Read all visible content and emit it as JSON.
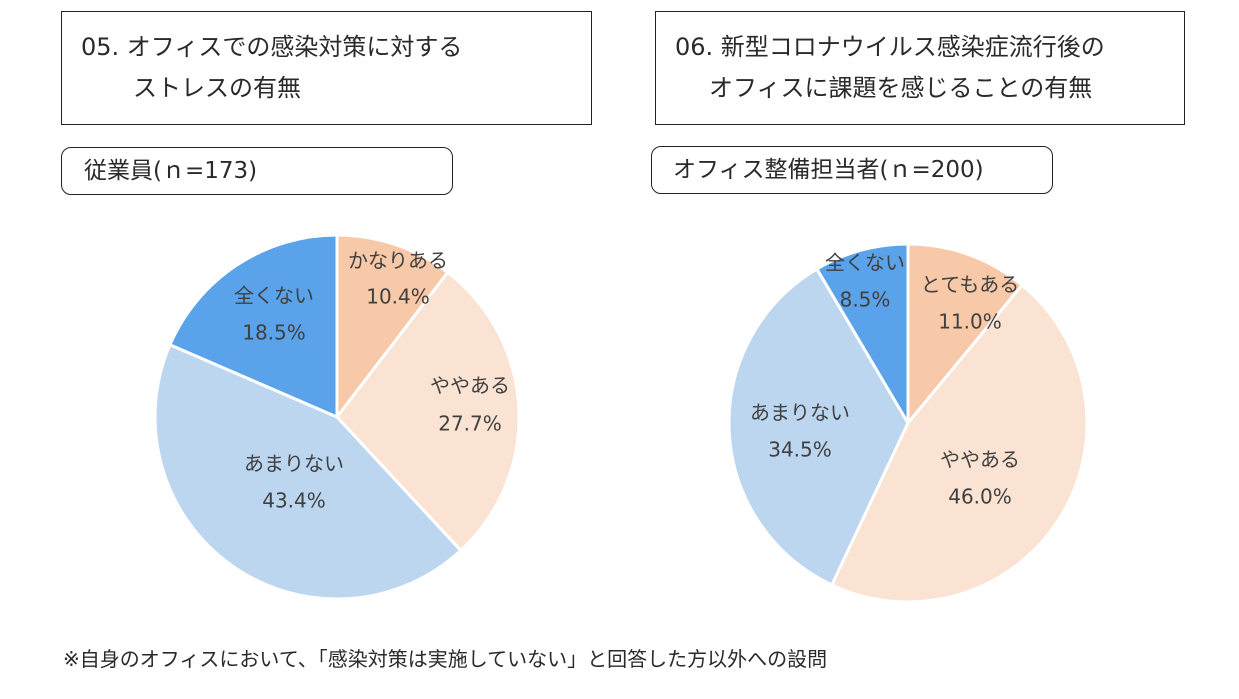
{
  "colors": {
    "very_much": "#f8c9a8",
    "somewhat": "#fbe3d3",
    "not_much": "#bcd6ef",
    "not_at_all": "#5aa3ea",
    "stroke": "#ffffff"
  },
  "chart_data": [
    {
      "type": "pie",
      "title_lines": [
        "05. オフィスでの感染対策に対する",
        "ストレスの有無"
      ],
      "sample_label": "従業員(ｎ=173)",
      "slices": [
        {
          "label": "かなりある",
          "value": 10.4,
          "value_text": "10.4%",
          "color_key": "very_much"
        },
        {
          "label": "ややある",
          "value": 27.7,
          "value_text": "27.7%",
          "color_key": "somewhat"
        },
        {
          "label": "あまりない",
          "value": 43.4,
          "value_text": "43.4%",
          "color_key": "not_much"
        },
        {
          "label": "全くない",
          "value": 18.5,
          "value_text": "18.5%",
          "color_key": "not_at_all"
        }
      ]
    },
    {
      "type": "pie",
      "title_lines": [
        "06. 新型コロナウイルス感染症流行後の",
        "オフィスに課題を感じることの有無"
      ],
      "sample_label": "オフィス整備担当者(ｎ=200)",
      "slices": [
        {
          "label": "とてもある",
          "value": 11.0,
          "value_text": "11.0%",
          "color_key": "very_much"
        },
        {
          "label": "ややある",
          "value": 46.0,
          "value_text": "46.0%",
          "color_key": "somewhat"
        },
        {
          "label": "あまりない",
          "value": 34.5,
          "value_text": "34.5%",
          "color_key": "not_much"
        },
        {
          "label": "全くない",
          "value": 8.5,
          "value_text": "8.5%",
          "color_key": "not_at_all"
        }
      ]
    }
  ],
  "footnote": "※自身のオフィスにおいて、「感染対策は実施していない」と回答した方以外への設問"
}
